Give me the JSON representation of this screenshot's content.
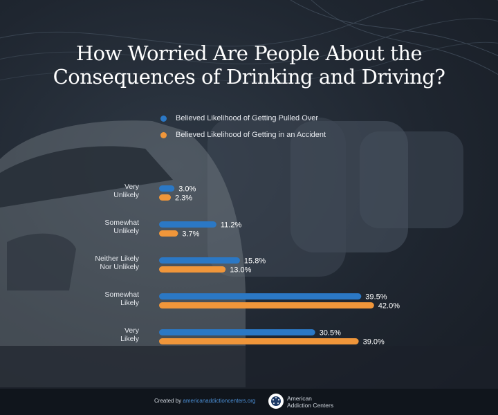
{
  "title": {
    "line1": "How Worried Are People About the",
    "line2": "Consequences of Drinking and Driving?"
  },
  "colors": {
    "pulled_over": "#2b78c5",
    "accident": "#f0963a",
    "background": "#1f2630",
    "text": "#ffffff"
  },
  "chart_data": {
    "type": "bar",
    "orientation": "horizontal",
    "categories": [
      [
        "Very",
        "Unlikely"
      ],
      [
        "Somewhat",
        "Unlikely"
      ],
      [
        "Neither Likely",
        "Nor Unlikely"
      ],
      [
        "Somewhat",
        "Likely"
      ],
      [
        "Very",
        "Likely"
      ]
    ],
    "series": [
      {
        "name": "Believed Likelihood of Getting Pulled Over",
        "color": "#2b78c5",
        "values": [
          3.0,
          11.2,
          15.8,
          39.5,
          30.5
        ]
      },
      {
        "name": "Believed Likelihood of Getting in an Accident",
        "color": "#f0963a",
        "values": [
          2.3,
          3.7,
          13.0,
          42.0,
          39.0
        ]
      }
    ],
    "value_suffix": "%",
    "legend_position": "top",
    "grid": false
  },
  "footer": {
    "created_by": "Created by",
    "site": "americanaddictioncenters.org",
    "brand_line1": "American",
    "brand_line2": "Addiction Centers"
  }
}
